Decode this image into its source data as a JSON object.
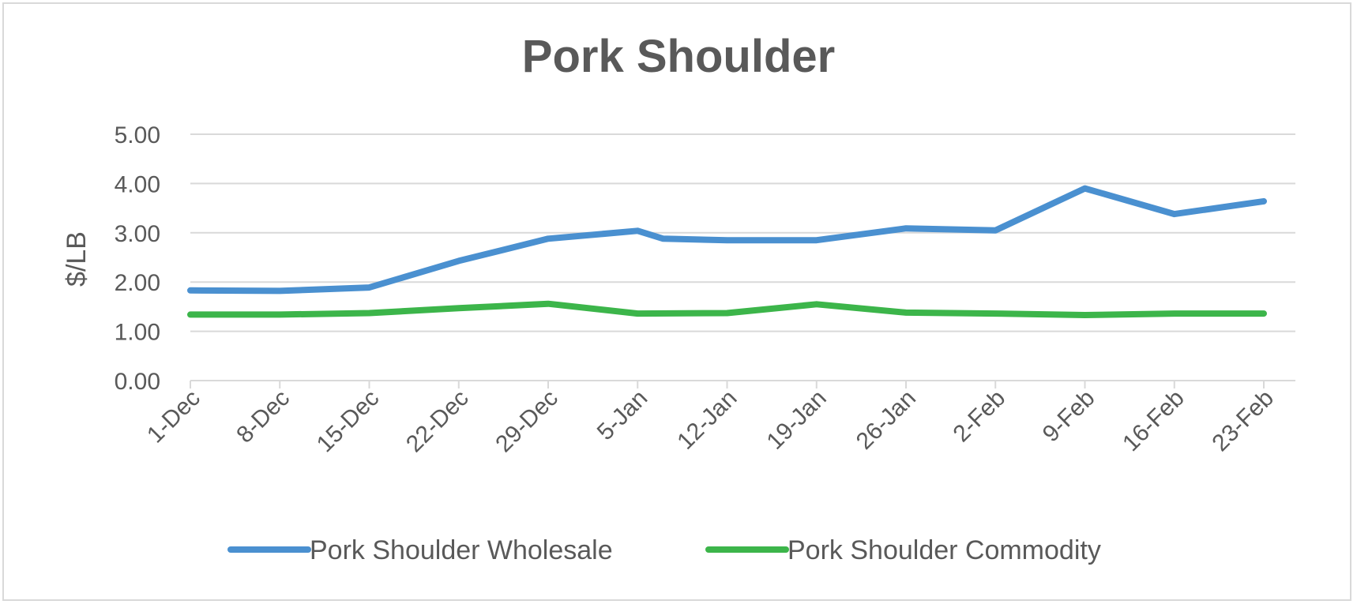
{
  "chart_data": {
    "type": "line",
    "title": "Pork Shoulder",
    "xlabel": "",
    "ylabel": "$/LB",
    "ylim": [
      0,
      5
    ],
    "yticks": [
      "0.00",
      "1.00",
      "2.00",
      "3.00",
      "4.00",
      "5.00"
    ],
    "grid": true,
    "legend": "bottom",
    "categories": [
      "1-Dec",
      "8-Dec",
      "15-Dec",
      "22-Dec",
      "29-Dec",
      "5-Jan",
      "12-Jan",
      "19-Jan",
      "26-Jan",
      "2-Feb",
      "9-Feb",
      "16-Feb",
      "23-Feb"
    ],
    "series": [
      {
        "name": "Pork Shoulder Wholesale",
        "color": "#4a90d0",
        "points": [
          [
            "1-Dec",
            1.83
          ],
          [
            "8-Dec",
            1.82
          ],
          [
            "15-Dec",
            1.89
          ],
          [
            "22-Dec",
            2.43
          ],
          [
            "29-Dec",
            2.88
          ],
          [
            "5-Jan",
            3.04
          ],
          [
            "7-Jan",
            2.88
          ],
          [
            "12-Jan",
            2.85
          ],
          [
            "19-Jan",
            2.85
          ],
          [
            "26-Jan",
            3.09
          ],
          [
            "2-Feb",
            3.05
          ],
          [
            "9-Feb",
            3.9
          ],
          [
            "16-Feb",
            3.38
          ],
          [
            "23-Feb",
            3.64
          ]
        ]
      },
      {
        "name": "Pork Shoulder Commodity",
        "color": "#3cb54a",
        "points": [
          [
            "1-Dec",
            1.34
          ],
          [
            "8-Dec",
            1.34
          ],
          [
            "15-Dec",
            1.37
          ],
          [
            "22-Dec",
            1.47
          ],
          [
            "29-Dec",
            1.56
          ],
          [
            "5-Jan",
            1.36
          ],
          [
            "12-Jan",
            1.37
          ],
          [
            "19-Jan",
            1.55
          ],
          [
            "26-Jan",
            1.38
          ],
          [
            "2-Feb",
            1.36
          ],
          [
            "9-Feb",
            1.33
          ],
          [
            "16-Feb",
            1.36
          ],
          [
            "23-Feb",
            1.36
          ]
        ]
      }
    ]
  }
}
